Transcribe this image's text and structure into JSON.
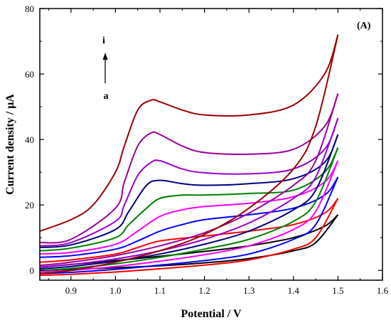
{
  "chart_data": {
    "type": "line",
    "panel_label": "(A)",
    "xlabel": "Potential / V",
    "ylabel": "Current density / μA",
    "xlim": [
      0.83,
      1.6
    ],
    "ylim": [
      -3,
      80
    ],
    "xticks": [
      0.9,
      1.0,
      1.1,
      1.2,
      1.3,
      1.4,
      1.5,
      1.6
    ],
    "yticks": [
      0,
      20,
      40,
      60,
      80
    ],
    "grid": false,
    "annotation": {
      "top": "i",
      "bottom": "a",
      "arrow": "up"
    },
    "series": [
      {
        "color": "#000000",
        "forward": [
          [
            0.83,
            0.0
          ],
          [
            0.9,
            0.3
          ],
          [
            1.0,
            0.8
          ],
          [
            1.1,
            1.4
          ],
          [
            1.2,
            2.3
          ],
          [
            1.3,
            3.6
          ],
          [
            1.4,
            6.0
          ],
          [
            1.45,
            8.5
          ],
          [
            1.5,
            17.0
          ]
        ],
        "reverse": [
          [
            1.5,
            17.0
          ],
          [
            1.47,
            13.5
          ],
          [
            1.4,
            10.0
          ],
          [
            1.3,
            7.5
          ],
          [
            1.2,
            5.8
          ],
          [
            1.1,
            4.3
          ],
          [
            1.0,
            3.0
          ],
          [
            0.9,
            1.8
          ],
          [
            0.83,
            1.0
          ]
        ]
      },
      {
        "color": "#ff0000",
        "forward": [
          [
            0.83,
            -1.5
          ],
          [
            0.9,
            -1.2
          ],
          [
            1.0,
            -0.5
          ],
          [
            1.1,
            0.5
          ],
          [
            1.2,
            1.6
          ],
          [
            1.3,
            3.2
          ],
          [
            1.4,
            6.5
          ],
          [
            1.45,
            10.0
          ],
          [
            1.5,
            22.0
          ]
        ],
        "reverse": [
          [
            1.5,
            22.0
          ],
          [
            1.47,
            17.5
          ],
          [
            1.4,
            14.0
          ],
          [
            1.3,
            12.0
          ],
          [
            1.2,
            10.5
          ],
          [
            1.1,
            9.0
          ],
          [
            1.05,
            7.0
          ],
          [
            1.0,
            5.0
          ],
          [
            0.9,
            3.2
          ],
          [
            0.83,
            2.5
          ]
        ]
      },
      {
        "color": "#0000ff",
        "forward": [
          [
            0.83,
            -1.0
          ],
          [
            0.9,
            -0.6
          ],
          [
            1.0,
            0.3
          ],
          [
            1.1,
            1.6
          ],
          [
            1.2,
            3.0
          ],
          [
            1.3,
            5.0
          ],
          [
            1.4,
            9.5
          ],
          [
            1.45,
            14.0
          ],
          [
            1.5,
            28.5
          ]
        ],
        "reverse": [
          [
            1.5,
            28.5
          ],
          [
            1.47,
            23.0
          ],
          [
            1.4,
            19.0
          ],
          [
            1.3,
            17.0
          ],
          [
            1.2,
            15.5
          ],
          [
            1.15,
            14.0
          ],
          [
            1.1,
            12.0
          ],
          [
            1.05,
            9.0
          ],
          [
            1.0,
            6.5
          ],
          [
            0.9,
            4.5
          ],
          [
            0.83,
            4.0
          ]
        ]
      },
      {
        "color": "#ff00ff",
        "forward": [
          [
            0.83,
            -0.5
          ],
          [
            0.9,
            0.0
          ],
          [
            1.0,
            1.2
          ],
          [
            1.1,
            2.8
          ],
          [
            1.2,
            4.8
          ],
          [
            1.3,
            7.5
          ],
          [
            1.4,
            12.5
          ],
          [
            1.45,
            18.0
          ],
          [
            1.5,
            33.5
          ]
        ],
        "reverse": [
          [
            1.5,
            33.5
          ],
          [
            1.47,
            27.0
          ],
          [
            1.4,
            22.5
          ],
          [
            1.3,
            20.5
          ],
          [
            1.2,
            19.5
          ],
          [
            1.15,
            18.5
          ],
          [
            1.1,
            16.5
          ],
          [
            1.05,
            12.0
          ],
          [
            1.0,
            8.0
          ],
          [
            0.9,
            5.5
          ],
          [
            0.83,
            5.0
          ]
        ]
      },
      {
        "color": "#008000",
        "forward": [
          [
            0.83,
            0.0
          ],
          [
            0.9,
            0.6
          ],
          [
            1.0,
            2.0
          ],
          [
            1.1,
            4.0
          ],
          [
            1.2,
            6.5
          ],
          [
            1.3,
            9.5
          ],
          [
            1.4,
            15.0
          ],
          [
            1.45,
            21.0
          ],
          [
            1.5,
            37.5
          ]
        ],
        "reverse": [
          [
            1.5,
            37.5
          ],
          [
            1.47,
            30.0
          ],
          [
            1.4,
            24.5
          ],
          [
            1.3,
            23.5
          ],
          [
            1.2,
            23.0
          ],
          [
            1.15,
            23.0
          ],
          [
            1.1,
            22.0
          ],
          [
            1.07,
            19.0
          ],
          [
            1.03,
            14.0
          ],
          [
            1.0,
            10.0
          ],
          [
            0.9,
            6.8
          ],
          [
            0.83,
            6.0
          ]
        ]
      },
      {
        "color": "#000080",
        "forward": [
          [
            0.83,
            0.5
          ],
          [
            0.9,
            1.2
          ],
          [
            1.0,
            2.8
          ],
          [
            1.1,
            5.0
          ],
          [
            1.2,
            8.0
          ],
          [
            1.3,
            12.0
          ],
          [
            1.4,
            18.5
          ],
          [
            1.45,
            24.5
          ],
          [
            1.5,
            41.5
          ]
        ],
        "reverse": [
          [
            1.5,
            41.5
          ],
          [
            1.47,
            33.0
          ],
          [
            1.4,
            28.0
          ],
          [
            1.3,
            26.5
          ],
          [
            1.2,
            26.0
          ],
          [
            1.15,
            26.5
          ],
          [
            1.1,
            27.5
          ],
          [
            1.07,
            26.0
          ],
          [
            1.03,
            18.0
          ],
          [
            1.0,
            12.5
          ],
          [
            0.9,
            7.8
          ],
          [
            0.83,
            7.0
          ]
        ]
      },
      {
        "color": "#9900cc",
        "forward": [
          [
            0.83,
            1.0
          ],
          [
            0.9,
            1.8
          ],
          [
            1.0,
            3.5
          ],
          [
            1.1,
            6.0
          ],
          [
            1.2,
            9.5
          ],
          [
            1.3,
            14.5
          ],
          [
            1.4,
            22.0
          ],
          [
            1.45,
            28.5
          ],
          [
            1.5,
            46.5
          ]
        ],
        "reverse": [
          [
            1.5,
            46.5
          ],
          [
            1.47,
            37.0
          ],
          [
            1.4,
            31.0
          ],
          [
            1.3,
            29.5
          ],
          [
            1.2,
            29.8
          ],
          [
            1.15,
            31.0
          ],
          [
            1.1,
            33.5
          ],
          [
            1.08,
            33.0
          ],
          [
            1.05,
            29.0
          ],
          [
            1.02,
            20.0
          ],
          [
            1.0,
            15.0
          ],
          [
            0.9,
            8.5
          ],
          [
            0.83,
            7.5
          ]
        ]
      },
      {
        "color": "#990099",
        "forward": [
          [
            0.83,
            1.5
          ],
          [
            0.9,
            2.5
          ],
          [
            1.0,
            4.5
          ],
          [
            1.1,
            7.5
          ],
          [
            1.2,
            11.5
          ],
          [
            1.3,
            17.5
          ],
          [
            1.4,
            26.0
          ],
          [
            1.45,
            33.5
          ],
          [
            1.5,
            54.0
          ]
        ],
        "reverse": [
          [
            1.5,
            54.0
          ],
          [
            1.47,
            44.0
          ],
          [
            1.4,
            37.0
          ],
          [
            1.3,
            35.5
          ],
          [
            1.2,
            36.0
          ],
          [
            1.15,
            38.0
          ],
          [
            1.1,
            41.5
          ],
          [
            1.08,
            42.0
          ],
          [
            1.05,
            38.0
          ],
          [
            1.02,
            27.0
          ],
          [
            1.0,
            19.0
          ],
          [
            0.9,
            9.5
          ],
          [
            0.83,
            8.5
          ]
        ]
      },
      {
        "color": "#990000",
        "forward": [
          [
            0.83,
            -1.0
          ],
          [
            0.9,
            0.0
          ],
          [
            1.0,
            2.5
          ],
          [
            1.1,
            6.0
          ],
          [
            1.2,
            11.0
          ],
          [
            1.3,
            19.0
          ],
          [
            1.4,
            31.0
          ],
          [
            1.45,
            44.0
          ],
          [
            1.5,
            72.0
          ]
        ],
        "reverse": [
          [
            1.5,
            72.0
          ],
          [
            1.47,
            60.0
          ],
          [
            1.4,
            50.5
          ],
          [
            1.3,
            47.5
          ],
          [
            1.2,
            47.5
          ],
          [
            1.15,
            49.0
          ],
          [
            1.1,
            51.5
          ],
          [
            1.08,
            52.0
          ],
          [
            1.05,
            49.0
          ],
          [
            1.02,
            38.0
          ],
          [
            1.0,
            30.0
          ],
          [
            0.95,
            20.0
          ],
          [
            0.9,
            15.5
          ],
          [
            0.83,
            12.0
          ]
        ]
      }
    ]
  }
}
